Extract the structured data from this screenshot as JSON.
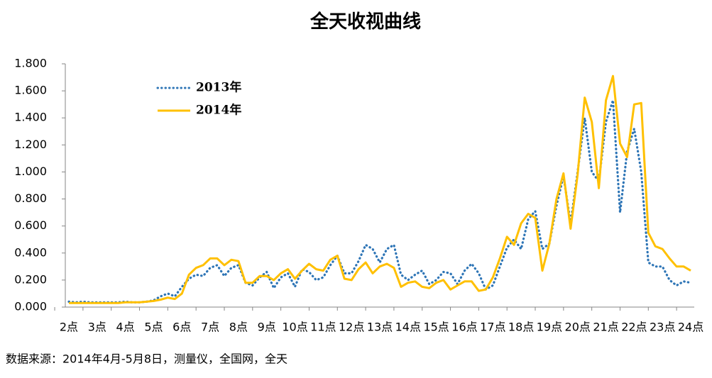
{
  "chart_data": {
    "type": "line",
    "title": "全天收视曲线",
    "source": "数据来源：2014年4月-5月8日，测量仪，全国网，全天",
    "categories": [
      "2点",
      null,
      null,
      null,
      "3点",
      null,
      null,
      null,
      "4点",
      null,
      null,
      null,
      "5点",
      null,
      null,
      null,
      "6点",
      null,
      null,
      null,
      "7点",
      null,
      null,
      null,
      "8点",
      null,
      null,
      null,
      "9点",
      null,
      null,
      null,
      "10点",
      null,
      null,
      null,
      "11点",
      null,
      null,
      null,
      "12点",
      null,
      null,
      null,
      "13点",
      null,
      null,
      null,
      "14点",
      null,
      null,
      null,
      "15点",
      null,
      null,
      null,
      "16点",
      null,
      null,
      null,
      "17点",
      null,
      null,
      null,
      "18点",
      null,
      null,
      null,
      "19点",
      null,
      null,
      null,
      "20点",
      null,
      null,
      null,
      "21点",
      null,
      null,
      null,
      "22点",
      null,
      null,
      null,
      "23点",
      null,
      null,
      null,
      "24点"
    ],
    "series": [
      {
        "name": "2013年",
        "color": "#2e75b6",
        "style": "dotted",
        "values": [
          0.04,
          0.035,
          0.04,
          0.035,
          0.035,
          0.035,
          0.035,
          0.035,
          0.04,
          0.035,
          0.035,
          0.04,
          0.05,
          0.08,
          0.1,
          0.08,
          0.15,
          0.21,
          0.24,
          0.23,
          0.29,
          0.31,
          0.23,
          0.29,
          0.31,
          0.18,
          0.16,
          0.22,
          0.26,
          0.14,
          0.22,
          0.25,
          0.15,
          0.28,
          0.26,
          0.2,
          0.22,
          0.31,
          0.38,
          0.25,
          0.25,
          0.34,
          0.46,
          0.43,
          0.33,
          0.43,
          0.46,
          0.24,
          0.2,
          0.24,
          0.27,
          0.17,
          0.2,
          0.26,
          0.25,
          0.17,
          0.27,
          0.32,
          0.25,
          0.13,
          0.16,
          0.3,
          0.44,
          0.5,
          0.43,
          0.65,
          0.71,
          0.43,
          0.47,
          0.75,
          0.97,
          0.62,
          1.0,
          1.4,
          1.0,
          0.93,
          1.37,
          1.53,
          0.7,
          1.15,
          1.32,
          1.0,
          0.33,
          0.3,
          0.3,
          0.2,
          0.16,
          0.19,
          0.18
        ]
      },
      {
        "name": "2014年",
        "color": "#ffc000",
        "style": "solid",
        "values": [
          0.03,
          0.03,
          0.03,
          0.03,
          0.03,
          0.03,
          0.03,
          0.03,
          0.035,
          0.035,
          0.035,
          0.04,
          0.045,
          0.055,
          0.07,
          0.06,
          0.1,
          0.24,
          0.29,
          0.31,
          0.36,
          0.36,
          0.31,
          0.35,
          0.34,
          0.18,
          0.18,
          0.23,
          0.23,
          0.2,
          0.25,
          0.28,
          0.21,
          0.27,
          0.32,
          0.28,
          0.27,
          0.35,
          0.38,
          0.21,
          0.2,
          0.28,
          0.33,
          0.25,
          0.3,
          0.32,
          0.29,
          0.15,
          0.18,
          0.19,
          0.15,
          0.14,
          0.18,
          0.2,
          0.13,
          0.16,
          0.19,
          0.19,
          0.12,
          0.13,
          0.22,
          0.36,
          0.52,
          0.46,
          0.62,
          0.69,
          0.66,
          0.27,
          0.47,
          0.8,
          0.99,
          0.58,
          0.98,
          1.55,
          1.37,
          0.88,
          1.53,
          1.71,
          1.21,
          1.11,
          1.5,
          1.51,
          0.55,
          0.45,
          0.43,
          0.36,
          0.3,
          0.3,
          0.27
        ]
      }
    ],
    "ylim": [
      0,
      1.8
    ],
    "yticks": [
      {
        "value": 0,
        "label": "0.000"
      },
      {
        "value": 0.2,
        "label": "0.200"
      },
      {
        "value": 0.4,
        "label": "0.400"
      },
      {
        "value": 0.6,
        "label": "0.600"
      },
      {
        "value": 0.8,
        "label": "0.800"
      },
      {
        "value": 1.0,
        "label": "1.000"
      },
      {
        "value": 1.2,
        "label": "1.200"
      },
      {
        "value": 1.4,
        "label": "1.400"
      },
      {
        "value": 1.6,
        "label": "1.600"
      },
      {
        "value": 1.8,
        "label": "1.800"
      }
    ],
    "grid": false,
    "legend": "top-left"
  }
}
